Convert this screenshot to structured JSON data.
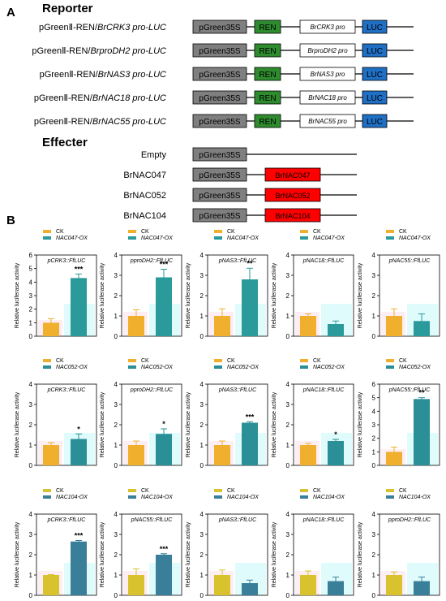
{
  "figure": {
    "panel_a_letter": "A",
    "panel_b_letter": "B"
  },
  "colors": {
    "promoter_box": "#7f7f7f",
    "ren_box": "#2e8b2e",
    "luc_box": "#1f6fc4",
    "effector_box": "#ff0000",
    "ck_047": "#f0b02e",
    "ox_047": "#2a9a9a",
    "ck_052": "#f0b02e",
    "ox_052": "#2a8f96",
    "ck_104": "#d8c22e",
    "ox_104": "#3a7f9a",
    "bg_ck": "#fdeef3",
    "bg_ox": "#e0fbfb"
  },
  "reporter": {
    "title": "Reporter",
    "rows": [
      {
        "prefix": "pGreenⅡ-REN/",
        "gene": "BrCRK3 pro-LUC",
        "promoter": "pGreen35S",
        "ren": "REN",
        "pro": "BrCRK3 pro",
        "luc": "LUC"
      },
      {
        "prefix": "pGreenⅡ-REN/",
        "gene": "BrproDH2 pro-LUC",
        "promoter": "pGreen35S",
        "ren": "REN",
        "pro": "BrproDH2 pro",
        "luc": "LUC"
      },
      {
        "prefix": "pGreenⅡ-REN/",
        "gene": "BrNAS3 pro-LUC",
        "promoter": "pGreen35S",
        "ren": "REN",
        "pro": "BrNAS3 pro",
        "luc": "LUC"
      },
      {
        "prefix": "pGreenⅡ-REN/",
        "gene": "BrNAC18 pro-LUC",
        "promoter": "pGreen35S",
        "ren": "REN",
        "pro": "BrNAC18 pro",
        "luc": "LUC"
      },
      {
        "prefix": "pGreenⅡ-REN/",
        "gene": "BrNAC55 pro-LUC",
        "promoter": "pGreen35S",
        "ren": "REN",
        "pro": "BrNAC55 pro",
        "luc": "LUC"
      }
    ]
  },
  "effecter": {
    "title": "Effecter",
    "rows": [
      {
        "label": "Empty",
        "promoter": "pGreen35S",
        "gene": ""
      },
      {
        "label": "BrNAC047",
        "promoter": "pGreen35S",
        "gene": "BrNAC047"
      },
      {
        "label": "BrNAC052",
        "promoter": "pGreen35S",
        "gene": "BrNAC052"
      },
      {
        "label": "BrNAC104",
        "promoter": "pGreen35S",
        "gene": "BrNAC104"
      }
    ]
  },
  "chart_data": [
    {
      "type": "bar",
      "row": 0,
      "col": 0,
      "title": "pCRK3::FfLUC",
      "ylabel": "Relative luciferase activity",
      "ylim": [
        0,
        6
      ],
      "yticks": [
        "0",
        "1",
        "2",
        "3",
        "4",
        "5",
        "6"
      ],
      "series": [
        {
          "name": "CK",
          "values": [
            1.0
          ],
          "error": [
            0.3
          ]
        },
        {
          "name": "NAC047-OX",
          "values": [
            4.3
          ],
          "error": [
            0.3
          ]
        }
      ],
      "significance": "***"
    },
    {
      "type": "bar",
      "row": 0,
      "col": 1,
      "title": "pproDH2::FfLUC",
      "ylabel": "Relative luciferase activity",
      "ylim": [
        0,
        4
      ],
      "yticks": [
        "0",
        "1",
        "2",
        "3",
        "4"
      ],
      "series": [
        {
          "name": "CK",
          "values": [
            1.0
          ],
          "error": [
            0.3
          ]
        },
        {
          "name": "NAC047-OX",
          "values": [
            2.9
          ],
          "error": [
            0.4
          ]
        }
      ],
      "significance": "***"
    },
    {
      "type": "bar",
      "row": 0,
      "col": 2,
      "title": "pNAS3::FfLUC",
      "ylabel": "Relative luciferase activity",
      "ylim": [
        0,
        4
      ],
      "yticks": [
        "0",
        "1",
        "2",
        "3",
        "4"
      ],
      "series": [
        {
          "name": "CK",
          "values": [
            1.0
          ],
          "error": [
            0.35
          ]
        },
        {
          "name": "NAC047-OX",
          "values": [
            2.8
          ],
          "error": [
            0.55
          ]
        }
      ],
      "significance": "**"
    },
    {
      "type": "bar",
      "row": 0,
      "col": 3,
      "title": "pNAC18::FfLUC",
      "ylabel": "Relative luciferase activity",
      "ylim": [
        0,
        4
      ],
      "yticks": [
        "0",
        "1",
        "2",
        "3",
        "4"
      ],
      "series": [
        {
          "name": "CK",
          "values": [
            1.0
          ],
          "error": [
            0.1
          ]
        },
        {
          "name": "NAC047-OX",
          "values": [
            0.6
          ],
          "error": [
            0.15
          ]
        }
      ],
      "significance": ""
    },
    {
      "type": "bar",
      "row": 0,
      "col": 4,
      "title": "pNAC55::FfLUC",
      "ylabel": "Relative luciferase activity",
      "ylim": [
        0,
        4
      ],
      "yticks": [
        "0",
        "1",
        "2",
        "3",
        "4"
      ],
      "series": [
        {
          "name": "CK",
          "values": [
            1.0
          ],
          "error": [
            0.35
          ]
        },
        {
          "name": "NAC047-OX",
          "values": [
            0.75
          ],
          "error": [
            0.35
          ]
        }
      ],
      "significance": ""
    },
    {
      "type": "bar",
      "row": 1,
      "col": 0,
      "title": "pCRK3::FfLUC",
      "ylabel": "Relative luciferase activity",
      "ylim": [
        0,
        4
      ],
      "yticks": [
        "0",
        "1",
        "2",
        "3",
        "4"
      ],
      "series": [
        {
          "name": "CK",
          "values": [
            1.0
          ],
          "error": [
            0.12
          ]
        },
        {
          "name": "NAC052-OX",
          "values": [
            1.3
          ],
          "error": [
            0.25
          ]
        }
      ],
      "significance": "*"
    },
    {
      "type": "bar",
      "row": 1,
      "col": 1,
      "title": "pproDH2::FfLUC",
      "ylabel": "Relative luciferase activity",
      "ylim": [
        0,
        4
      ],
      "yticks": [
        "0",
        "1",
        "2",
        "3",
        "4"
      ],
      "series": [
        {
          "name": "CK",
          "values": [
            1.0
          ],
          "error": [
            0.2
          ]
        },
        {
          "name": "NAC052-OX",
          "values": [
            1.55
          ],
          "error": [
            0.25
          ]
        }
      ],
      "significance": "*"
    },
    {
      "type": "bar",
      "row": 1,
      "col": 2,
      "title": "pNAS3::FfLUC",
      "ylabel": "Relative luciferase activity",
      "ylim": [
        0,
        4
      ],
      "yticks": [
        "0",
        "1",
        "2",
        "3",
        "4"
      ],
      "series": [
        {
          "name": "CK",
          "values": [
            1.0
          ],
          "error": [
            0.2
          ]
        },
        {
          "name": "NAC052-OX",
          "values": [
            2.1
          ],
          "error": [
            0.05
          ]
        }
      ],
      "significance": "***"
    },
    {
      "type": "bar",
      "row": 1,
      "col": 3,
      "title": "pNAC18::FfLUC",
      "ylabel": "Relative luciferase activity",
      "ylim": [
        0,
        4
      ],
      "yticks": [
        "0",
        "1",
        "2",
        "3",
        "4"
      ],
      "series": [
        {
          "name": "CK",
          "values": [
            1.0
          ],
          "error": [
            0.08
          ]
        },
        {
          "name": "NAC052-OX",
          "values": [
            1.2
          ],
          "error": [
            0.08
          ]
        }
      ],
      "significance": "*"
    },
    {
      "type": "bar",
      "row": 1,
      "col": 4,
      "title": "pNAC55::FfLUC",
      "ylabel": "Relative luciferase activity",
      "ylim": [
        0,
        6
      ],
      "yticks": [
        "0",
        "1",
        "2",
        "3",
        "4",
        "5",
        "6"
      ],
      "series": [
        {
          "name": "CK",
          "values": [
            1.0
          ],
          "error": [
            0.35
          ]
        },
        {
          "name": "NAC052-OX",
          "values": [
            4.9
          ],
          "error": [
            0.1
          ]
        }
      ],
      "significance": "**"
    },
    {
      "type": "bar",
      "row": 2,
      "col": 0,
      "title": "pCRK3::FfLUC",
      "ylabel": "Relative luciferase activity",
      "ylim": [
        0,
        4
      ],
      "yticks": [
        "0",
        "1",
        "2",
        "3",
        "4"
      ],
      "series": [
        {
          "name": "CK",
          "values": [
            1.0
          ],
          "error": [
            0.02
          ]
        },
        {
          "name": "NAC104-OX",
          "values": [
            2.65
          ],
          "error": [
            0.05
          ]
        }
      ],
      "significance": "***"
    },
    {
      "type": "bar",
      "row": 2,
      "col": 1,
      "title": "pNAC55::FfLUC",
      "ylabel": "Relative luciferase activity",
      "ylim": [
        0,
        4
      ],
      "yticks": [
        "0",
        "1",
        "2",
        "3",
        "4"
      ],
      "series": [
        {
          "name": "CK",
          "values": [
            1.0
          ],
          "error": [
            0.3
          ]
        },
        {
          "name": "NAC104-OX",
          "values": [
            2.0
          ],
          "error": [
            0.05
          ]
        }
      ],
      "significance": "***"
    },
    {
      "type": "bar",
      "row": 2,
      "col": 2,
      "title": "pNAS3::FfLUC",
      "ylabel": "Relative luciferase activity",
      "ylim": [
        0,
        4
      ],
      "yticks": [
        "0",
        "1",
        "2",
        "3",
        "4"
      ],
      "series": [
        {
          "name": "CK",
          "values": [
            1.0
          ],
          "error": [
            0.25
          ]
        },
        {
          "name": "NAC104-OX",
          "values": [
            0.6
          ],
          "error": [
            0.15
          ]
        }
      ],
      "significance": ""
    },
    {
      "type": "bar",
      "row": 2,
      "col": 3,
      "title": "pNAC18::FfLUC",
      "ylabel": "Relative luciferase activity",
      "ylim": [
        0,
        4
      ],
      "yticks": [
        "0",
        "1",
        "2",
        "3",
        "4"
      ],
      "series": [
        {
          "name": "CK",
          "values": [
            1.0
          ],
          "error": [
            0.2
          ]
        },
        {
          "name": "NAC104-OX",
          "values": [
            0.7
          ],
          "error": [
            0.2
          ]
        }
      ],
      "significance": ""
    },
    {
      "type": "bar",
      "row": 2,
      "col": 4,
      "title": "pproDH2::FfLUC",
      "ylabel": "Relative luciferase activity",
      "ylim": [
        0,
        4
      ],
      "yticks": [
        "0",
        "1",
        "2",
        "3",
        "4"
      ],
      "series": [
        {
          "name": "CK",
          "values": [
            1.0
          ],
          "error": [
            0.15
          ]
        },
        {
          "name": "NAC104-OX",
          "values": [
            0.7
          ],
          "error": [
            0.2
          ]
        }
      ],
      "significance": ""
    }
  ]
}
